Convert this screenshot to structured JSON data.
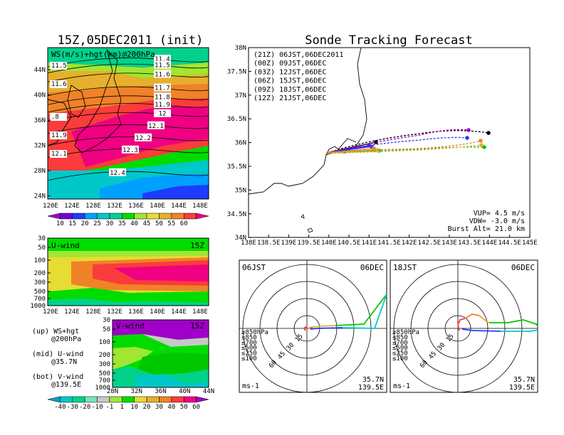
{
  "left": {
    "title": "15Z,05DEC2011 (init)",
    "top": {
      "label": "WS(m/s)+hgt(km)@200hPa",
      "ylabels": [
        "44N",
        "40N",
        "36N",
        "32N",
        "28N",
        "24N"
      ],
      "xlabels": [
        "120E",
        "124E",
        "128E",
        "132E",
        "136E",
        "140E",
        "144E",
        "148E"
      ],
      "contours": [
        {
          "label": "11.4",
          "y": 0.08
        },
        {
          "label": "11.5",
          "y": 0.12
        },
        {
          "label": "11.6",
          "y": 0.18
        },
        {
          "label": "11.7",
          "y": 0.27
        },
        {
          "label": "11.8",
          "y": 0.33
        },
        {
          "label": "11.9",
          "y": 0.38
        },
        {
          "label": "12",
          "y": 0.44
        },
        {
          "label": "12.1",
          "y": 0.52
        },
        {
          "label": "12.2",
          "y": 0.6
        },
        {
          "label": "12.3",
          "y": 0.68
        },
        {
          "label": "12.4",
          "y": 0.83
        }
      ],
      "side_labels": [
        "11.5",
        "11.6",
        ".8",
        "11.9",
        "12.1"
      ],
      "colorbar": {
        "ticks": [
          "10",
          "15",
          "20",
          "25",
          "30",
          "35",
          "40",
          "45",
          "50",
          "55",
          "60"
        ],
        "colors": [
          "#a000c8",
          "#6e00dc",
          "#1e3cff",
          "#00a0ff",
          "#00c8c8",
          "#00d28c",
          "#00dc00",
          "#a0e632",
          "#e6dc32",
          "#e6af2d",
          "#f08228",
          "#fa3c3c",
          "#f00082"
        ]
      }
    },
    "mid": {
      "label": "U-wind",
      "time": "15Z",
      "ylabels": [
        "30",
        "50",
        "100",
        "200",
        "300",
        "500",
        "700",
        "1000"
      ],
      "xlabels": [
        "120E",
        "124E",
        "128E",
        "132E",
        "136E",
        "140E",
        "144E",
        "148E"
      ]
    },
    "legend": {
      "up": "(up) WS+hgt",
      "up2": "@200hPa",
      "mid": "(mid) U-wind",
      "mid2": "@35.7N",
      "bot": "(bot) V-wind",
      "bot2": "@139.5E"
    },
    "bot": {
      "label": "V-wind",
      "time": "15Z",
      "ylabels": [
        "30",
        "50",
        "100",
        "200",
        "300",
        "500",
        "700",
        "1000"
      ],
      "xlabels": [
        "28N",
        "32N",
        "36N",
        "40N",
        "44N"
      ],
      "colorbar": {
        "ticks": [
          "-40",
          "-30",
          "-20",
          "-10",
          "-1",
          "1",
          "10",
          "20",
          "30",
          "40",
          "50",
          "60"
        ],
        "colors": [
          "#00a0c8",
          "#00c8c8",
          "#00d28c",
          "#78e6b4",
          "#c8c8c8",
          "#a0e632",
          "#00dc00",
          "#e6dc32",
          "#e6af2d",
          "#f08228",
          "#fa3c3c",
          "#f00082",
          "#a000c8"
        ]
      }
    }
  },
  "right": {
    "title": "Sonde Tracking Forecast",
    "map": {
      "ylabels": [
        "38N",
        "37.5N",
        "37N",
        "36.5N",
        "36N",
        "35.5N",
        "35N",
        "34.5N",
        "34N"
      ],
      "xlabels": [
        "138E",
        "138.5E",
        "139E",
        "139.5E",
        "140E",
        "140.5E",
        "141E",
        "141.5E",
        "142E",
        "142.5E",
        "143E",
        "143.5E",
        "144E",
        "144.5E",
        "145E"
      ],
      "legend": [
        {
          "code": "(21Z)",
          "text": "06JST,06DEC2011",
          "color": "#000000"
        },
        {
          "code": "(00Z)",
          "text": "09JST,06DEC",
          "color": "#a000c8"
        },
        {
          "code": "(03Z)",
          "text": "12JST,06DEC",
          "color": "#1e3cff"
        },
        {
          "code": "(06Z)",
          "text": "15JST,06DEC",
          "color": "#00c800"
        },
        {
          "code": "(09Z)",
          "text": "18JST,06DEC",
          "color": "#e6af2d"
        },
        {
          "code": "(12Z)",
          "text": "21JST,06DEC",
          "color": "#f08228"
        }
      ],
      "info": [
        "VUP= 4.5 m/s",
        "VDW= -3.0 m/s",
        "Burst Alt= 21.0 km"
      ]
    },
    "hodo1": {
      "time": "06JST",
      "date": "06DEC",
      "rings": [
        "15",
        "30",
        "45",
        "60"
      ],
      "unit": "ms-1",
      "lat": "35.7N",
      "lon": "139.5E",
      "levels": [
        {
          "t": "≥850hPa",
          "c": "#fa3c3c"
        },
        {
          "t": "≤850",
          "c": "#f08228"
        },
        {
          "t": "≤700",
          "c": "#e6af2d"
        },
        {
          "t": "≤500",
          "c": "#00c800"
        },
        {
          "t": "≤250",
          "c": "#00c8c8"
        },
        {
          "t": "≤100",
          "c": "#1e3cff"
        }
      ]
    },
    "hodo2": {
      "time": "18JST",
      "date": "06DEC",
      "rings": [
        "15",
        "30",
        "45",
        "60"
      ],
      "unit": "ms-1",
      "lat": "35.7N",
      "lon": "139.5E",
      "levels": [
        {
          "t": "≥850hPa",
          "c": "#fa3c3c"
        },
        {
          "t": "≤850",
          "c": "#f08228"
        },
        {
          "t": "≤700",
          "c": "#e6af2d"
        },
        {
          "t": "≤500",
          "c": "#00c800"
        },
        {
          "t": "≤250",
          "c": "#00c8c8"
        },
        {
          "t": "≤100",
          "c": "#1e3cff"
        }
      ]
    }
  }
}
